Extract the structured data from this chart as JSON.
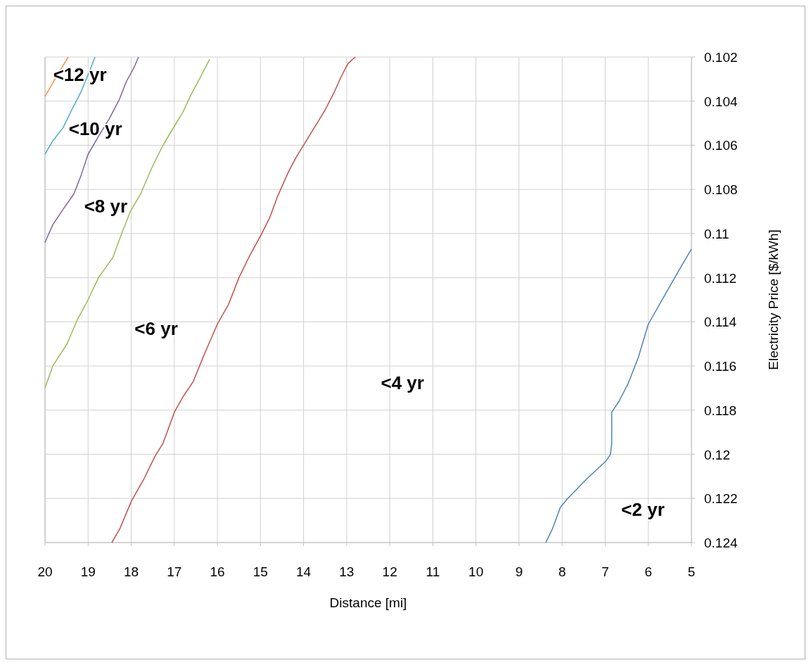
{
  "chart_data": {
    "type": "line",
    "xlabel": "Distance [mi]",
    "ylabel": "Electricity Price [$/kWh]",
    "xlim": [
      20,
      5
    ],
    "xticks": [
      20,
      19,
      18,
      17,
      16,
      15,
      14,
      13,
      12,
      11,
      10,
      9,
      8,
      7,
      6,
      5
    ],
    "ylim": [
      0.124,
      0.102
    ],
    "yticks": [
      0.102,
      0.104,
      0.106,
      0.108,
      0.11,
      0.112,
      0.114,
      0.116,
      0.118,
      0.12,
      0.122,
      0.124
    ],
    "grid": true,
    "marker": "none",
    "line_style": "solid",
    "series": [
      {
        "color": "#4f81bd",
        "x": [
          8.38,
          8.23,
          8.04,
          7.87,
          7.42,
          6.98,
          6.88,
          6.85,
          6.85,
          6.68,
          6.47,
          6.23,
          6.0,
          5.62,
          5.3,
          5.0
        ],
        "values": [
          0.124,
          0.1234,
          0.1224,
          0.122,
          0.1211,
          0.1203,
          0.12,
          0.1195,
          0.1181,
          0.1176,
          0.1168,
          0.1156,
          0.1141,
          0.1128,
          0.1117,
          0.1107
        ]
      },
      {
        "color": "#c0504d",
        "x": [
          18.45,
          18.27,
          17.99,
          17.7,
          17.45,
          17.26,
          17.0,
          16.8,
          16.56,
          16.31,
          16.0,
          15.74,
          15.5,
          15.25,
          14.97,
          14.79,
          14.6,
          14.35,
          14.16,
          14.0,
          13.75,
          13.5,
          13.29,
          13.13,
          12.97,
          12.8
        ],
        "values": [
          0.124,
          0.1234,
          0.1221,
          0.1211,
          0.1201,
          0.1195,
          0.1181,
          0.1174,
          0.1167,
          0.1155,
          0.1141,
          0.1132,
          0.112,
          0.111,
          0.11,
          0.1093,
          0.1083,
          0.1072,
          0.1065,
          0.106,
          0.1052,
          0.1044,
          0.1036,
          0.1029,
          0.1023,
          0.102
        ]
      },
      {
        "color": "#9bbb59",
        "x": [
          20,
          19.82,
          19.49,
          19.25,
          19.0,
          18.76,
          18.43,
          18.24,
          18.02,
          17.78,
          17.54,
          17.29,
          17.05,
          16.8,
          16.61,
          16.39,
          16.18
        ],
        "values": [
          0.117,
          0.116,
          0.115,
          0.1139,
          0.113,
          0.112,
          0.1111,
          0.1101,
          0.109,
          0.1082,
          0.1071,
          0.1061,
          0.1053,
          0.1045,
          0.1037,
          0.1029,
          0.1021
        ]
      },
      {
        "color": "#8064a2",
        "x": [
          20,
          19.82,
          19.58,
          19.33,
          19.17,
          19.0,
          18.76,
          18.51,
          18.27,
          18.11,
          17.94,
          17.83
        ],
        "values": [
          0.1104,
          0.1096,
          0.1089,
          0.1082,
          0.1074,
          0.1064,
          0.1056,
          0.1048,
          0.1039,
          0.1031,
          0.1025,
          0.102
        ]
      },
      {
        "color": "#4bacc6",
        "x": [
          20,
          19.82,
          19.58,
          19.38,
          19.17,
          19.0,
          18.84
        ],
        "values": [
          0.1064,
          0.1058,
          0.1052,
          0.1044,
          0.1036,
          0.1028,
          0.102
        ]
      },
      {
        "color": "#f79646",
        "x": [
          20,
          19.74,
          19.46
        ],
        "values": [
          0.1038,
          0.1029,
          0.102
        ]
      }
    ],
    "annotations": [
      "<12 yr",
      "<10 yr",
      "<8 yr",
      "<6 yr",
      "<4 yr",
      "<2 yr"
    ]
  }
}
